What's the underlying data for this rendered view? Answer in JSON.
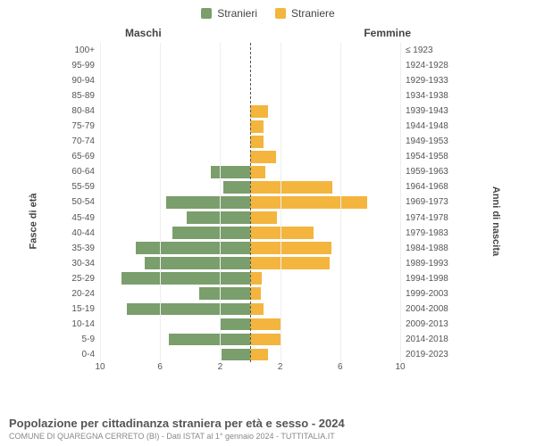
{
  "chart": {
    "type": "population-pyramid",
    "legend": [
      {
        "label": "Stranieri",
        "color": "#7a9e6c"
      },
      {
        "label": "Straniere",
        "color": "#f3b53e"
      }
    ],
    "header_left": "Maschi",
    "header_right": "Femmine",
    "left_axis_title": "Fasce di età",
    "right_axis_title": "Anni di nascita",
    "x_max": 10,
    "x_ticks_left": [
      10,
      6,
      2
    ],
    "x_ticks_right": [
      2,
      6,
      10
    ],
    "colors": {
      "male": "#7a9e6c",
      "female": "#f3b53e",
      "grid": "#eeeeee",
      "centerline": "#555555",
      "background": "#ffffff",
      "text": "#555555"
    },
    "tick_fontsize": 10,
    "label_fontsize": 11,
    "rows": [
      {
        "age": "100+",
        "birth": "≤ 1923",
        "m": 0,
        "f": 0
      },
      {
        "age": "95-99",
        "birth": "1924-1928",
        "m": 0,
        "f": 0
      },
      {
        "age": "90-94",
        "birth": "1929-1933",
        "m": 0,
        "f": 0
      },
      {
        "age": "85-89",
        "birth": "1934-1938",
        "m": 0,
        "f": 0
      },
      {
        "age": "80-84",
        "birth": "1939-1943",
        "m": 0,
        "f": 1.2
      },
      {
        "age": "75-79",
        "birth": "1944-1948",
        "m": 0,
        "f": 0.9
      },
      {
        "age": "70-74",
        "birth": "1949-1953",
        "m": 0,
        "f": 0.9
      },
      {
        "age": "65-69",
        "birth": "1954-1958",
        "m": 0,
        "f": 1.7
      },
      {
        "age": "60-64",
        "birth": "1959-1963",
        "m": 2.6,
        "f": 1.0
      },
      {
        "age": "55-59",
        "birth": "1964-1968",
        "m": 1.8,
        "f": 5.5
      },
      {
        "age": "50-54",
        "birth": "1969-1973",
        "m": 5.6,
        "f": 7.8
      },
      {
        "age": "45-49",
        "birth": "1974-1978",
        "m": 4.2,
        "f": 1.8
      },
      {
        "age": "40-44",
        "birth": "1979-1983",
        "m": 5.2,
        "f": 4.2
      },
      {
        "age": "35-39",
        "birth": "1984-1988",
        "m": 7.6,
        "f": 5.4
      },
      {
        "age": "30-34",
        "birth": "1989-1993",
        "m": 7.0,
        "f": 5.3
      },
      {
        "age": "25-29",
        "birth": "1994-1998",
        "m": 8.6,
        "f": 0.8
      },
      {
        "age": "20-24",
        "birth": "1999-2003",
        "m": 3.4,
        "f": 0.7
      },
      {
        "age": "15-19",
        "birth": "2004-2008",
        "m": 8.2,
        "f": 0.9
      },
      {
        "age": "10-14",
        "birth": "2009-2013",
        "m": 2.0,
        "f": 2.0
      },
      {
        "age": "5-9",
        "birth": "2014-2018",
        "m": 5.4,
        "f": 2.0
      },
      {
        "age": "0-4",
        "birth": "2019-2023",
        "m": 1.9,
        "f": 1.2
      }
    ]
  },
  "footer": {
    "title": "Popolazione per cittadinanza straniera per età e sesso - 2024",
    "subtitle": "COMUNE DI QUAREGNA CERRETO (BI) - Dati ISTAT al 1° gennaio 2024 - TUTTITALIA.IT"
  }
}
